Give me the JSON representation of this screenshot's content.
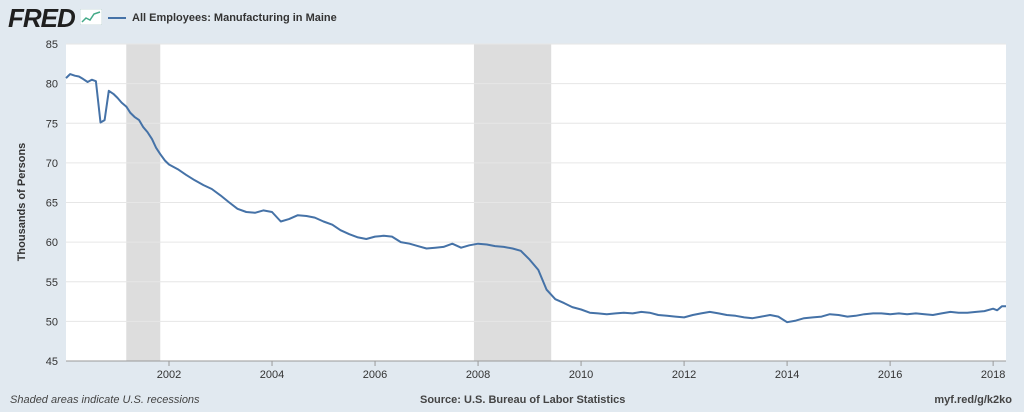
{
  "header": {
    "logo_text": "FRED",
    "logo_icon": "line-graph-icon",
    "legend_label": "All Employees: Manufacturing in Maine"
  },
  "footer": {
    "note": "Shaded areas indicate U.S. recessions",
    "source": "Source: U.S. Bureau of Labor Statistics",
    "link": "myf.red/g/k2ko"
  },
  "colors": {
    "series": "#4572a7",
    "recession": "#dddddd",
    "background": "#e1e9f0",
    "plot": "#ffffff"
  },
  "chart_data": {
    "type": "line",
    "title": "All Employees: Manufacturing in Maine",
    "ylabel": "Thousands of Persons",
    "xlabel": "",
    "ylim": [
      45,
      85
    ],
    "xlim": [
      2000.0,
      2018.25
    ],
    "yticks": [
      45,
      50,
      55,
      60,
      65,
      70,
      75,
      80,
      85
    ],
    "xticks": [
      "2002",
      "2004",
      "2006",
      "2008",
      "2010",
      "2012",
      "2014",
      "2016",
      "2018"
    ],
    "grid": true,
    "recessions": [
      [
        2001.17,
        2001.83
      ],
      [
        2007.92,
        2009.42
      ]
    ],
    "series": [
      {
        "name": "All Employees: Manufacturing in Maine",
        "x": [
          2000.0,
          2000.08,
          2000.17,
          2000.25,
          2000.33,
          2000.42,
          2000.5,
          2000.58,
          2000.67,
          2000.75,
          2000.83,
          2000.92,
          2001.0,
          2001.08,
          2001.17,
          2001.25,
          2001.33,
          2001.42,
          2001.5,
          2001.58,
          2001.67,
          2001.75,
          2001.83,
          2001.92,
          2002.0,
          2002.17,
          2002.33,
          2002.5,
          2002.67,
          2002.83,
          2003.0,
          2003.17,
          2003.33,
          2003.5,
          2003.67,
          2003.83,
          2004.0,
          2004.17,
          2004.33,
          2004.5,
          2004.67,
          2004.83,
          2005.0,
          2005.17,
          2005.33,
          2005.5,
          2005.67,
          2005.83,
          2006.0,
          2006.17,
          2006.33,
          2006.5,
          2006.67,
          2006.83,
          2007.0,
          2007.17,
          2007.33,
          2007.5,
          2007.67,
          2007.83,
          2008.0,
          2008.17,
          2008.33,
          2008.5,
          2008.67,
          2008.83,
          2009.0,
          2009.17,
          2009.33,
          2009.5,
          2009.67,
          2009.83,
          2010.0,
          2010.17,
          2010.33,
          2010.5,
          2010.67,
          2010.83,
          2011.0,
          2011.17,
          2011.33,
          2011.5,
          2011.67,
          2011.83,
          2012.0,
          2012.17,
          2012.33,
          2012.5,
          2012.67,
          2012.83,
          2013.0,
          2013.17,
          2013.33,
          2013.5,
          2013.67,
          2013.83,
          2014.0,
          2014.17,
          2014.33,
          2014.5,
          2014.67,
          2014.83,
          2015.0,
          2015.17,
          2015.33,
          2015.5,
          2015.67,
          2015.83,
          2016.0,
          2016.17,
          2016.33,
          2016.5,
          2016.67,
          2016.83,
          2017.0,
          2017.17,
          2017.33,
          2017.5,
          2017.67,
          2017.83,
          2018.0,
          2018.08,
          2018.17,
          2018.25
        ],
        "values": [
          80.7,
          81.2,
          81.0,
          80.9,
          80.6,
          80.2,
          80.5,
          80.3,
          75.1,
          75.4,
          79.1,
          78.7,
          78.2,
          77.6,
          77.1,
          76.3,
          75.8,
          75.4,
          74.5,
          73.9,
          73.0,
          71.9,
          71.1,
          70.3,
          69.8,
          69.2,
          68.5,
          67.8,
          67.2,
          66.7,
          65.9,
          65.0,
          64.2,
          63.8,
          63.7,
          64.0,
          63.8,
          62.6,
          62.9,
          63.4,
          63.3,
          63.1,
          62.6,
          62.2,
          61.5,
          61.0,
          60.6,
          60.4,
          60.7,
          60.8,
          60.7,
          60.0,
          59.8,
          59.5,
          59.2,
          59.3,
          59.4,
          59.8,
          59.3,
          59.6,
          59.8,
          59.7,
          59.5,
          59.4,
          59.2,
          58.9,
          57.8,
          56.5,
          54.0,
          52.8,
          52.3,
          51.8,
          51.5,
          51.1,
          51.0,
          50.9,
          51.0,
          51.1,
          51.0,
          51.2,
          51.1,
          50.8,
          50.7,
          50.6,
          50.5,
          50.8,
          51.0,
          51.2,
          51.0,
          50.8,
          50.7,
          50.5,
          50.4,
          50.6,
          50.8,
          50.6,
          49.9,
          50.1,
          50.4,
          50.5,
          50.6,
          50.9,
          50.8,
          50.6,
          50.7,
          50.9,
          51.0,
          51.0,
          50.9,
          51.0,
          50.9,
          51.0,
          50.9,
          50.8,
          51.0,
          51.2,
          51.1,
          51.1,
          51.2,
          51.3,
          51.6,
          51.4,
          51.9,
          51.9
        ]
      }
    ]
  }
}
